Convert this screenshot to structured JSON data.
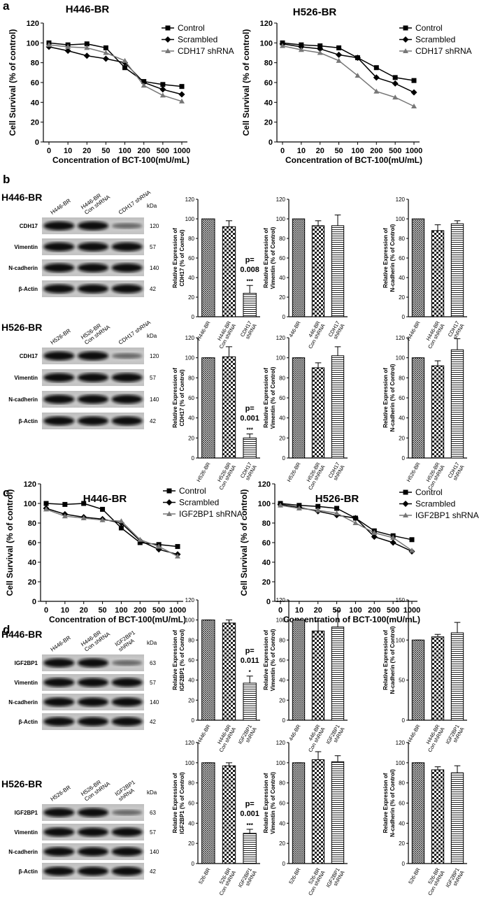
{
  "panel_labels": [
    "a",
    "b",
    "c",
    "d"
  ],
  "line_charts": [
    {
      "type": "line",
      "title": "H446-BR",
      "xlabel": "Concentration of BCT-100(mU/mL)",
      "ylabel": "Cell Survival (% of control)",
      "categories": [
        "0",
        "10",
        "20",
        "50",
        "100",
        "200",
        "500",
        "1000"
      ],
      "ylim": [
        0,
        120
      ],
      "yticks": [
        0,
        20,
        40,
        60,
        80,
        100,
        120
      ],
      "series": [
        {
          "name": "Control",
          "color": "#000000",
          "marker": "square",
          "values": [
            100,
            98,
            99,
            95,
            75,
            61,
            58,
            56
          ]
        },
        {
          "name": "Scrambled",
          "color": "#000000",
          "marker": "diamond",
          "values": [
            96,
            92,
            87,
            84,
            80,
            60,
            53,
            48
          ]
        },
        {
          "name": "CDH17 shRNA",
          "color": "#777777",
          "marker": "triangle",
          "values": [
            98,
            96,
            95,
            90,
            82,
            57,
            47,
            41
          ]
        }
      ]
    },
    {
      "type": "line",
      "title": "H526-BR",
      "xlabel": "Concentration of BCT-100(mU/mL)",
      "ylabel": "Cell Survival (% of control)",
      "categories": [
        "0",
        "10",
        "20",
        "50",
        "100",
        "200",
        "500",
        "1000"
      ],
      "ylim": [
        0,
        120
      ],
      "yticks": [
        0,
        20,
        40,
        60,
        80,
        100,
        120
      ],
      "series": [
        {
          "name": "Control",
          "color": "#000000",
          "marker": "square",
          "values": [
            100,
            98,
            97,
            95,
            85,
            75,
            65,
            62
          ]
        },
        {
          "name": "Scrambled",
          "color": "#000000",
          "marker": "diamond",
          "values": [
            99,
            96,
            94,
            88,
            85,
            65,
            59,
            50
          ]
        },
        {
          "name": "CDH17 shRNA",
          "color": "#777777",
          "marker": "triangle",
          "values": [
            97,
            93,
            90,
            82,
            67,
            51,
            45,
            36
          ]
        }
      ]
    },
    {
      "type": "line",
      "title": "H446-BR",
      "xlabel": "Concentration of BCT-100(mU/mL)",
      "ylabel": "Cell Survival (% of control)",
      "categories": [
        "0",
        "10",
        "20",
        "50",
        "100",
        "200",
        "500",
        "1000"
      ],
      "ylim": [
        0,
        120
      ],
      "yticks": [
        0,
        20,
        40,
        60,
        80,
        100,
        120
      ],
      "series": [
        {
          "name": "Control",
          "color": "#000000",
          "marker": "square",
          "values": [
            100,
            99,
            100,
            94,
            75,
            60,
            58,
            56
          ]
        },
        {
          "name": "Scrambled",
          "color": "#000000",
          "marker": "diamond",
          "values": [
            95,
            89,
            86,
            84,
            80,
            62,
            53,
            48
          ]
        },
        {
          "name": "IGF2BP1 shRNA",
          "color": "#777777",
          "marker": "triangle",
          "values": [
            94,
            87,
            85,
            83,
            82,
            63,
            56,
            46
          ]
        }
      ]
    },
    {
      "type": "line",
      "title": "H526-BR",
      "xlabel": "Concentration of BCT-100(mU/mL)",
      "ylabel": "Cell Survival (% of control)",
      "categories": [
        "0",
        "10",
        "20",
        "50",
        "100",
        "200",
        "500",
        "1000"
      ],
      "ylim": [
        0,
        120
      ],
      "yticks": [
        0,
        20,
        40,
        60,
        80,
        100,
        120
      ],
      "series": [
        {
          "name": "Control",
          "color": "#000000",
          "marker": "square",
          "values": [
            100,
            98,
            97,
            95,
            85,
            72,
            67,
            63
          ]
        },
        {
          "name": "Scrambled",
          "color": "#000000",
          "marker": "diamond",
          "values": [
            99,
            96,
            92,
            88,
            85,
            66,
            60,
            51
          ]
        },
        {
          "name": "IGF2BP1 shRNA",
          "color": "#777777",
          "marker": "triangle",
          "values": [
            98,
            95,
            93,
            90,
            80,
            70,
            65,
            52
          ]
        }
      ]
    }
  ],
  "blots": [
    {
      "title": "H446-BR",
      "kda_label": "kDa",
      "lanes": [
        [
          "H446-BR"
        ],
        [
          "H446-BR",
          "Con shRNA"
        ],
        [
          "CDH17 shRNA"
        ]
      ],
      "rows": [
        {
          "label": "CDH17",
          "kda": 120
        },
        {
          "label": "Vimentin",
          "kda": 57
        },
        {
          "label": "N-cadherin",
          "kda": 140
        },
        {
          "label": "β-Actin",
          "kda": 42
        }
      ]
    },
    {
      "title": "H526-BR",
      "kda_label": "kDa",
      "lanes": [
        [
          "H526-BR"
        ],
        [
          "H526-BR",
          "Con shRNA"
        ],
        [
          "CDH17 shRNA"
        ]
      ],
      "rows": [
        {
          "label": "CDH17",
          "kda": 120
        },
        {
          "label": "Vimentin",
          "kda": 57
        },
        {
          "label": "N-cadherin",
          "kda": 140
        },
        {
          "label": "β-Actin",
          "kda": 42
        }
      ]
    },
    {
      "title": "H446-BR",
      "kda_label": "kDa",
      "lanes": [
        [
          "H446-BR"
        ],
        [
          "H446-BR",
          "Con shRNA"
        ],
        [
          "IGF2BP1",
          "shRNA"
        ]
      ],
      "rows": [
        {
          "label": "IGF2BP1",
          "kda": 63
        },
        {
          "label": "Vimentin",
          "kda": 57
        },
        {
          "label": "N-cadherin",
          "kda": 140
        },
        {
          "label": "β-Actin",
          "kda": 42
        }
      ]
    },
    {
      "title": "H526-BR",
      "kda_label": "kDa",
      "lanes": [
        [
          "H526-BR"
        ],
        [
          "H526-BR",
          "Con shRNA"
        ],
        [
          "IGF2BP1",
          "shRNA"
        ]
      ],
      "rows": [
        {
          "label": "IGF2BP1",
          "kda": 63
        },
        {
          "label": "Vimentin",
          "kda": 57
        },
        {
          "label": "N-cadherin",
          "kda": 140
        },
        {
          "label": "β-Actin",
          "kda": 42
        }
      ]
    }
  ],
  "bar_charts": [
    {
      "type": "bar",
      "ylabel": [
        "Relative Expression of",
        "CDH17 (% of Control)"
      ],
      "categories": [
        [
          "H446-BR"
        ],
        [
          "H446-BR",
          "Con shRNA"
        ],
        [
          "CDH17",
          "shRNA"
        ]
      ],
      "values": [
        100,
        92,
        24
      ],
      "errors": [
        0,
        6,
        8
      ],
      "ylim": [
        0,
        120
      ],
      "yticks": [
        0,
        20,
        40,
        60,
        80,
        100,
        120
      ],
      "annotation": [
        "p=",
        "0.008"
      ],
      "stars": "***"
    },
    {
      "type": "bar",
      "ylabel": [
        "Relative Expression of",
        "Vimentin (% of Control)"
      ],
      "categories": [
        [
          "446-BR"
        ],
        [
          "446-BR",
          "Con shRNA"
        ],
        [
          "CDH17",
          "shRNA"
        ]
      ],
      "values": [
        100,
        93,
        93
      ],
      "errors": [
        0,
        5,
        11
      ],
      "ylim": [
        0,
        120
      ],
      "yticks": [
        0,
        20,
        40,
        60,
        80,
        100,
        120
      ]
    },
    {
      "type": "bar",
      "ylabel": [
        "Relative Expression of",
        "N-cadherin (% of Control)"
      ],
      "categories": [
        [
          "H446-BR"
        ],
        [
          "H446-BR",
          "Con shRNA"
        ],
        [
          "CDH17",
          "shRNA"
        ]
      ],
      "values": [
        100,
        88,
        95
      ],
      "errors": [
        0,
        6,
        3
      ],
      "ylim": [
        0,
        120
      ],
      "yticks": [
        0,
        20,
        40,
        60,
        80,
        100,
        120
      ]
    },
    {
      "type": "bar",
      "ylabel": [
        "Relative Expression of",
        "CDH17 (% of Control)"
      ],
      "categories": [
        [
          "H526-BR"
        ],
        [
          "H526-BR",
          "Con shRNA"
        ],
        [
          "CDH17",
          "shRNA"
        ]
      ],
      "values": [
        100,
        101,
        20
      ],
      "errors": [
        0,
        10,
        4
      ],
      "ylim": [
        0,
        120
      ],
      "yticks": [
        0,
        20,
        40,
        60,
        80,
        100,
        120
      ],
      "annotation": [
        "p=",
        "0.001"
      ],
      "stars": "***"
    },
    {
      "type": "bar",
      "ylabel": [
        "Relative Expression of",
        "Vimentin (% of Control)"
      ],
      "categories": [
        [
          "H526-BR"
        ],
        [
          "H526-BR",
          "Con shRNA"
        ],
        [
          "CDH17",
          "shRNA"
        ]
      ],
      "values": [
        100,
        90,
        102
      ],
      "errors": [
        0,
        5,
        9
      ],
      "ylim": [
        0,
        120
      ],
      "yticks": [
        0,
        20,
        40,
        60,
        80,
        100,
        120
      ]
    },
    {
      "type": "bar",
      "ylabel": [
        "Relative Expression of",
        "N-cadherin (% of Control)"
      ],
      "categories": [
        [
          "H526-BR"
        ],
        [
          "H526-BR",
          "Con shRNA"
        ],
        [
          "CDH17",
          "shRNA"
        ]
      ],
      "values": [
        100,
        92,
        108
      ],
      "errors": [
        0,
        5,
        11
      ],
      "ylim": [
        0,
        120
      ],
      "yticks": [
        0,
        20,
        40,
        60,
        80,
        100,
        120
      ]
    },
    {
      "type": "bar",
      "ylabel": [
        "Relative Expression of",
        "IGF2BP1 (% of Control)"
      ],
      "categories": [
        [
          "H446-BR"
        ],
        [
          "H446-BR",
          "Con shRNA"
        ],
        [
          "IGF2BP1",
          "shRNA"
        ]
      ],
      "values": [
        100,
        97,
        37
      ],
      "errors": [
        0,
        3,
        7
      ],
      "ylim": [
        0,
        120
      ],
      "yticks": [
        0,
        20,
        40,
        60,
        80,
        100,
        120
      ],
      "annotation": [
        "p=",
        "0.011"
      ],
      "stars": "*"
    },
    {
      "type": "bar",
      "ylabel": [
        "Relative Expression of",
        "Vimentin (% of Control)"
      ],
      "categories": [
        [
          "446-BR"
        ],
        [
          "446-BR",
          "Con shRNA"
        ],
        [
          "IGF2BP1",
          "shRNA"
        ]
      ],
      "values": [
        100,
        89,
        93
      ],
      "errors": [
        0,
        10,
        16
      ],
      "ylim": [
        0,
        120
      ],
      "yticks": [
        0,
        20,
        40,
        60,
        80,
        100,
        120
      ]
    },
    {
      "type": "bar",
      "ylabel": [
        "Relative Expression of",
        "N-cadherin (% of Control)"
      ],
      "categories": [
        [
          "H446-BR"
        ],
        [
          "H446-BR",
          "Con shRNA"
        ],
        [
          "IGF2BP1",
          "shRNA"
        ]
      ],
      "values": [
        100,
        104,
        109
      ],
      "errors": [
        0,
        3,
        13
      ],
      "ylim": [
        0,
        150
      ],
      "yticks": [
        0,
        50,
        100,
        150
      ]
    },
    {
      "type": "bar",
      "ylabel": [
        "Relative Expression of",
        "IGF2BP1 (% of Control)"
      ],
      "categories": [
        [
          "526-BR"
        ],
        [
          "526-BR",
          "Con shRNA"
        ],
        [
          "IGF2BP1",
          "shRNA"
        ]
      ],
      "values": [
        100,
        97,
        30
      ],
      "errors": [
        0,
        3,
        4
      ],
      "ylim": [
        0,
        120
      ],
      "yticks": [
        0,
        20,
        40,
        60,
        80,
        100,
        120
      ],
      "annotation": [
        "p=",
        "0.001"
      ],
      "stars": "***"
    },
    {
      "type": "bar",
      "ylabel": [
        "Relative Expression of",
        "Vimentin (% of Control)"
      ],
      "categories": [
        [
          "526-BR"
        ],
        [
          "526-BR",
          "Con shRNA"
        ],
        [
          "IGF2BP1",
          "shRNA"
        ]
      ],
      "values": [
        100,
        103,
        101
      ],
      "errors": [
        0,
        8,
        6
      ],
      "ylim": [
        0,
        120
      ],
      "yticks": [
        0,
        20,
        40,
        60,
        80,
        100,
        120
      ]
    },
    {
      "type": "bar",
      "ylabel": [
        "Relative Expression of",
        "N-cadherin (% of Control)"
      ],
      "categories": [
        [
          "526-BR"
        ],
        [
          "526-BR",
          "Con shRNA"
        ],
        [
          "IGF2BP1",
          "shRNA"
        ]
      ],
      "values": [
        100,
        93,
        90
      ],
      "errors": [
        0,
        3,
        7
      ],
      "ylim": [
        0,
        120
      ],
      "yticks": [
        0,
        20,
        40,
        60,
        80,
        100,
        120
      ]
    }
  ]
}
